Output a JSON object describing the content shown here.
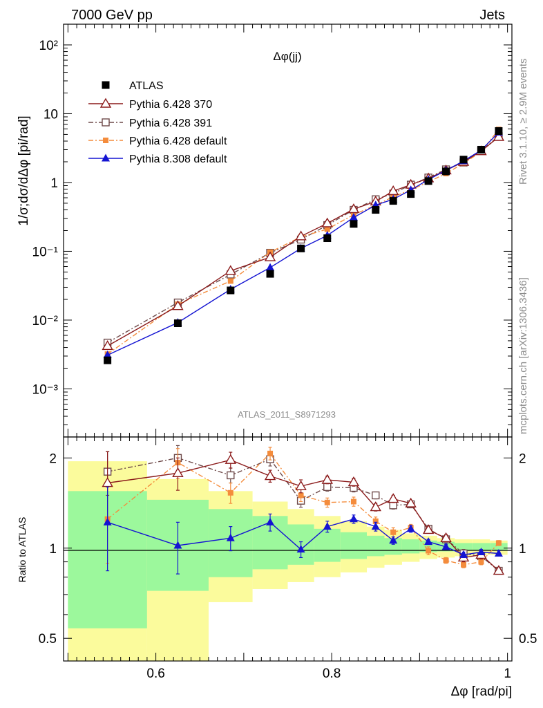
{
  "header": {
    "left_title": "7000 GeV pp",
    "right_title": "Jets",
    "side_label_top": "Rivet 3.1.10, ≥ 2.9M events",
    "side_label_bottom": "mcplots.cern.ch [arXiv:1306.3436]",
    "analysis_id": "ATLAS_2011_S8971293"
  },
  "colors": {
    "atlas": "#000000",
    "pythia6_370": "#8b1a1a",
    "pythia6_391": "#6e4a4a",
    "pythia6_default": "#f48c3c",
    "pythia8_default": "#1414d2",
    "band_inner": "#9cf89c",
    "band_outer": "#fbfb9c"
  },
  "chart_data": [
    {
      "type": "scatter",
      "panel": "main",
      "title": "Δφ(jj)",
      "xlabel": "Δφ [rad/pi]",
      "ylabel": "1/σ;dσ/dΔφ [pi/rad]",
      "xlim": [
        0.495,
        1.005
      ],
      "ylim": [
        0.0002,
        200
      ],
      "yscale": "log",
      "xticks": [
        "0.6",
        "0.8",
        "1"
      ],
      "yticks": [
        "10⁻³",
        "10⁻²",
        "10⁻¹",
        "1",
        "10",
        "10²"
      ],
      "legend_position": "top-left",
      "x": [
        0.545,
        0.625,
        0.685,
        0.73,
        0.765,
        0.795,
        0.825,
        0.85,
        0.87,
        0.89,
        0.91,
        0.93,
        0.95,
        0.97,
        0.99
      ],
      "series": [
        {
          "name": "ATLAS",
          "marker": "filled-square",
          "line": "none",
          "values": [
            0.0026,
            0.009,
            0.027,
            0.047,
            0.11,
            0.155,
            0.25,
            0.4,
            0.54,
            0.68,
            1.05,
            1.45,
            2.15,
            3.0,
            5.6
          ]
        },
        {
          "name": "Pythia 6.428 370",
          "marker": "open-triangle",
          "line": "solid",
          "values": [
            0.0042,
            0.016,
            0.052,
            0.082,
            0.165,
            0.255,
            0.41,
            0.53,
            0.75,
            0.93,
            1.15,
            1.5,
            2.0,
            2.85,
            4.6
          ]
        },
        {
          "name": "Pythia 6.428 391",
          "marker": "open-square",
          "line": "dashdot",
          "values": [
            0.0047,
            0.018,
            0.046,
            0.095,
            0.148,
            0.24,
            0.4,
            0.57,
            0.69,
            0.93,
            1.18,
            1.55,
            1.95,
            2.9,
            4.7
          ]
        },
        {
          "name": "Pythia 6.428 default",
          "marker": "filled-small-square",
          "line": "dashdot",
          "values": [
            0.0032,
            0.017,
            0.037,
            0.097,
            0.162,
            0.21,
            0.34,
            0.47,
            0.62,
            0.78,
            1.02,
            1.35,
            1.9,
            2.8,
            5.9
          ]
        },
        {
          "name": "Pythia 8.308 default",
          "marker": "filled-triangle",
          "line": "solid",
          "values": [
            0.0031,
            0.0092,
            0.028,
            0.058,
            0.11,
            0.17,
            0.31,
            0.47,
            0.57,
            0.78,
            1.1,
            1.5,
            2.05,
            2.95,
            5.35
          ]
        }
      ]
    },
    {
      "type": "scatter",
      "panel": "ratio",
      "xlabel": "Δφ [rad/pi]",
      "ylabel": "Ratio to ATLAS",
      "xlim": [
        0.495,
        1.005
      ],
      "ylim": [
        0.42,
        2.35
      ],
      "yscale": "log",
      "yticks": [
        "0.5",
        "1",
        "2"
      ],
      "reference_line": 1,
      "x": [
        0.545,
        0.625,
        0.685,
        0.73,
        0.765,
        0.795,
        0.825,
        0.85,
        0.87,
        0.89,
        0.91,
        0.93,
        0.95,
        0.97,
        0.99
      ],
      "bands": {
        "edges": [
          0.5,
          0.59,
          0.66,
          0.71,
          0.75,
          0.78,
          0.81,
          0.84,
          0.86,
          0.88,
          0.9,
          0.92,
          0.94,
          0.96,
          0.98,
          1.0
        ],
        "inner_low": [
          0.54,
          0.72,
          0.8,
          0.85,
          0.88,
          0.9,
          0.92,
          0.94,
          0.95,
          0.96,
          0.97,
          0.975,
          0.98,
          0.98,
          0.98
        ],
        "inner_high": [
          1.55,
          1.45,
          1.35,
          1.28,
          1.2,
          1.16,
          1.13,
          1.1,
          1.08,
          1.07,
          1.06,
          1.05,
          1.04,
          1.04,
          1.04
        ],
        "outer_low": [
          0.34,
          0.34,
          0.66,
          0.73,
          0.77,
          0.8,
          0.83,
          0.86,
          0.88,
          0.9,
          0.92,
          0.93,
          0.94,
          0.95,
          0.95
        ],
        "outer_high": [
          1.95,
          1.7,
          1.55,
          1.43,
          1.35,
          1.28,
          1.23,
          1.18,
          1.15,
          1.12,
          1.1,
          1.08,
          1.07,
          1.07,
          1.06
        ]
      },
      "series": [
        {
          "name": "Pythia 6.428 370",
          "values": [
            1.65,
            1.78,
            1.97,
            1.74,
            1.61,
            1.69,
            1.66,
            1.37,
            1.46,
            1.41,
            1.15,
            1.08,
            0.93,
            0.95,
            0.84
          ],
          "err": [
            0.45,
            0.22,
            0.12,
            0.08,
            0.08,
            0.05,
            0.05,
            0.04,
            0.04,
            0.03,
            0.03,
            0.03,
            0.03,
            0.03,
            0.02
          ]
        },
        {
          "name": "Pythia 6.428 391",
          "values": [
            1.8,
            2.0,
            1.75,
            1.98,
            1.44,
            1.6,
            1.59,
            1.5,
            1.39,
            1.4,
            1.16,
            1.07,
            0.96,
            0.94,
            0.84
          ],
          "err": [
            0.3,
            0.2,
            0.1,
            0.1,
            0.07,
            0.05,
            0.05,
            0.04,
            0.04,
            0.03,
            0.03,
            0.03,
            0.03,
            0.03,
            0.02
          ]
        },
        {
          "name": "Pythia 6.428 default",
          "values": [
            1.25,
            1.93,
            1.53,
            2.07,
            1.5,
            1.42,
            1.43,
            1.23,
            1.13,
            1.17,
            0.98,
            0.91,
            0.88,
            0.9,
            1.04
          ],
          "err": [
            0.36,
            0.22,
            0.12,
            0.1,
            0.07,
            0.05,
            0.05,
            0.04,
            0.04,
            0.03,
            0.03,
            0.02,
            0.02,
            0.02,
            0.02
          ]
        },
        {
          "name": "Pythia 8.308 default",
          "values": [
            1.22,
            1.02,
            1.08,
            1.22,
            0.99,
            1.18,
            1.25,
            1.18,
            1.06,
            1.16,
            1.05,
            1.01,
            0.95,
            0.97,
            0.96
          ],
          "err": [
            0.38,
            0.2,
            0.1,
            0.08,
            0.06,
            0.05,
            0.04,
            0.04,
            0.03,
            0.03,
            0.02,
            0.02,
            0.02,
            0.02,
            0.02
          ]
        }
      ]
    }
  ]
}
